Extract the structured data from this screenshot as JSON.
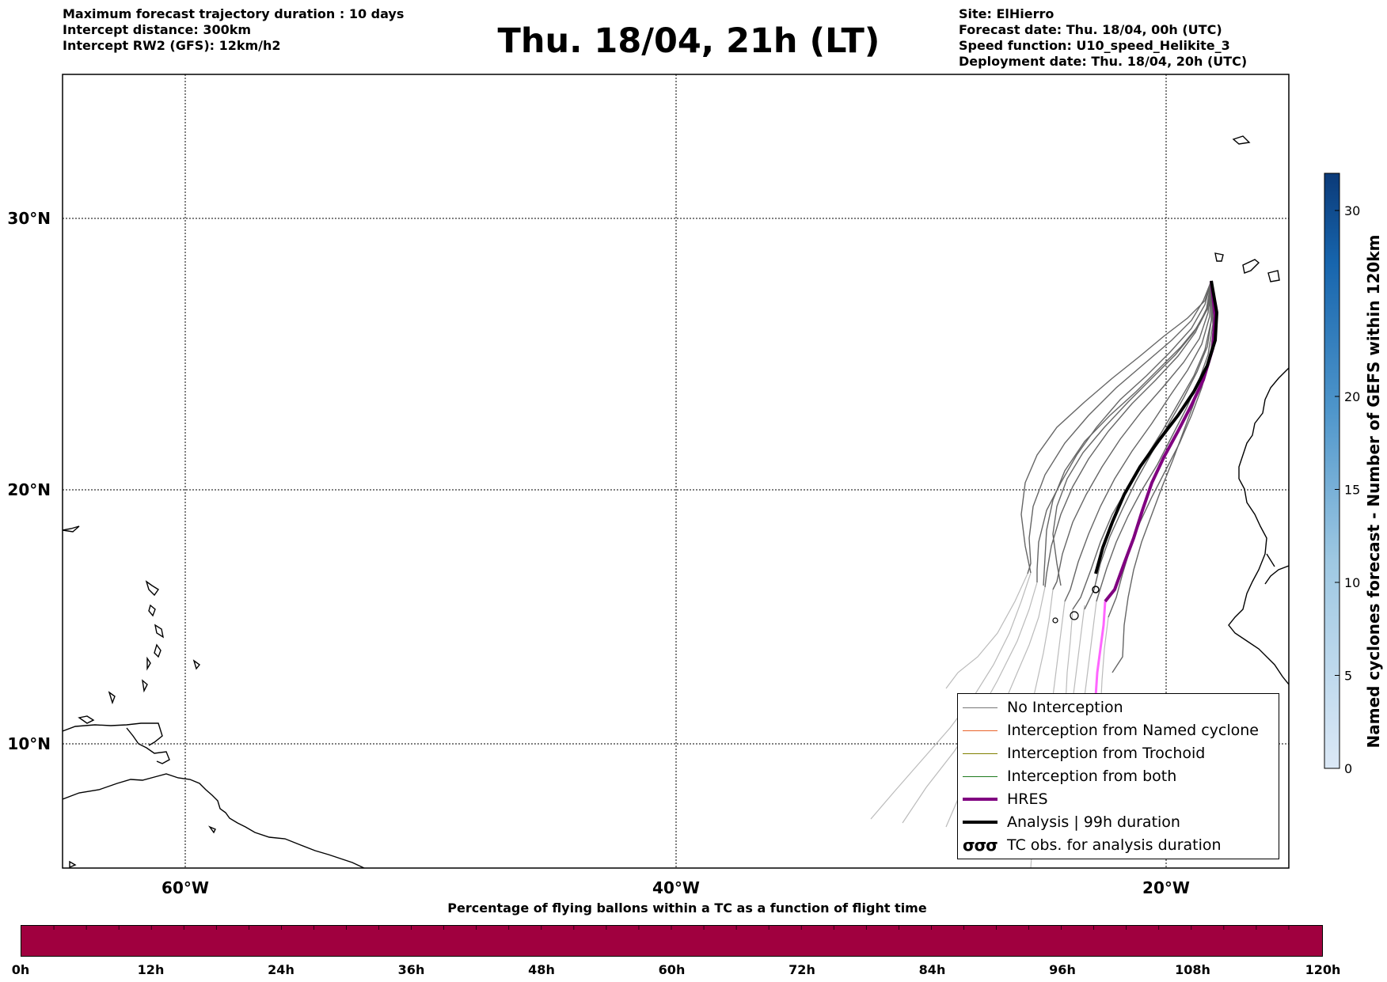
{
  "header": {
    "left_lines": [
      "Maximum forecast trajectory duration : 10 days",
      "Intercept distance: 300km",
      "Intercept RW2 (GFS):  12km/h2"
    ],
    "title": "Thu. 18/04, 21h (LT)",
    "right_lines": [
      "Site: ElHierro",
      "Forecast date: Thu. 18/04, 00h (UTC)",
      "Speed function: U10_speed_Helikite_3",
      "Deployment date: Thu. 18/04, 20h (UTC)"
    ]
  },
  "map": {
    "lat_labels": [
      "30°N",
      "20°N",
      "10°N"
    ],
    "lon_labels": [
      "60°W",
      "40°W",
      "20°W"
    ],
    "grid": true,
    "colors": {
      "no_interception": "#666666",
      "older": "#bbbbbb",
      "hres": "#800080",
      "hres_future": "#ff66ff",
      "analysis": "#000000"
    }
  },
  "legend": {
    "entries": [
      {
        "label": "No Interception",
        "color": "#777777"
      },
      {
        "label": "Interception from Named cyclone",
        "color": "#e8632a"
      },
      {
        "label": "Interception from Trochoid",
        "color": "#808000"
      },
      {
        "label": "Interception from both",
        "color": "#1e7a1e"
      },
      {
        "label": "HRES",
        "color": "#800080"
      },
      {
        "label": "Analysis | 99h duration",
        "color": "#000000"
      },
      {
        "label": "TC obs. for analysis duration",
        "icon": "tc-symbol-icon"
      }
    ],
    "tc_symbol": "σσσ"
  },
  "colorbar": {
    "label": "Named cyclones forecast - Number of GEFS within 120km",
    "ticks": [
      "0",
      "5",
      "10",
      "15",
      "20",
      "30"
    ],
    "tick_values": [
      0,
      5,
      10,
      15,
      20,
      30
    ],
    "range": [
      0,
      32
    ]
  },
  "timebar": {
    "title": "Percentage of flying ballons within a TC as a function of flight time",
    "ticks": [
      "0h",
      "12h",
      "24h",
      "36h",
      "48h",
      "60h",
      "72h",
      "84h",
      "96h",
      "108h",
      "120h"
    ],
    "color": "#a0003f"
  }
}
